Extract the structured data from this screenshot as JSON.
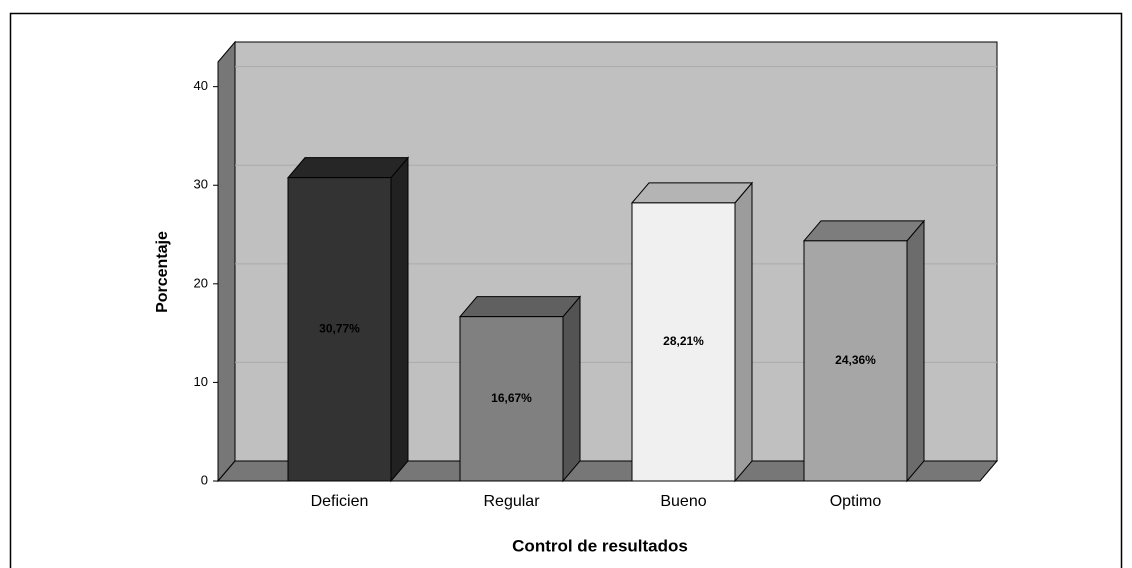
{
  "chart_data": {
    "type": "bar3d",
    "x_label": "Control de resultados",
    "y_label": "Porcentaje",
    "categories": [
      "Deficien",
      "Regular",
      "Bueno",
      "Optimo"
    ],
    "values": [
      30.77,
      16.67,
      28.21,
      24.36
    ],
    "value_labels": [
      "30,77%",
      "16,67%",
      "28,21%",
      "24,36%"
    ],
    "colors": [
      "#333333",
      "#808080",
      "#f0f0f0",
      "#a6a6a6"
    ],
    "ylim": [
      0,
      42.5
    ],
    "yticks": [
      0,
      10,
      20,
      30,
      40
    ],
    "grid": true
  }
}
